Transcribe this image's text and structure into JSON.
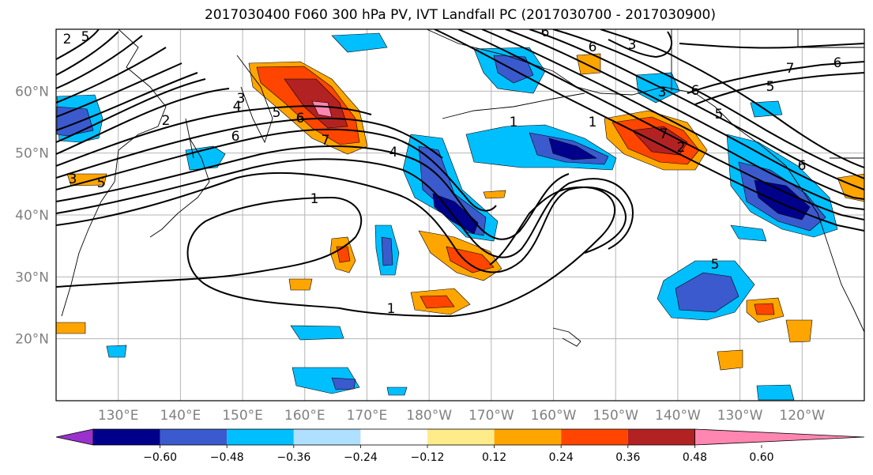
{
  "title": "2017030400 F060 300 hPa PV, IVT Landfall PC (2017030700 - 2017030900)",
  "lat_labels": [
    "20°N",
    "30°N",
    "40°N",
    "50°N",
    "60°N"
  ],
  "lon_labels": [
    "130°E",
    "140°E",
    "150°E",
    "160°E",
    "170°E",
    "180°W",
    "170°W",
    "160°W",
    "150°W",
    "140°W",
    "130°W",
    "120°W"
  ],
  "map_extent": {
    "lon_min": 120,
    "lon_max": 250,
    "lat_min": 10,
    "lat_max": 70
  },
  "contour_labels": [
    "1",
    "1",
    "1",
    "2",
    "3",
    "3",
    "4",
    "5",
    "6",
    "6",
    "7",
    "2",
    "3",
    "4",
    "5",
    "6",
    "7",
    "1",
    "5",
    "6",
    "6",
    "3",
    "2",
    "5",
    "6",
    "7",
    "5",
    "6",
    "5"
  ],
  "colorbar": {
    "colors": [
      "#9932cc",
      "#00008b",
      "#3a5acd",
      "#00bfff",
      "#b0e0ff",
      "#ffffff",
      "#ffeb8a",
      "#ffa500",
      "#ff4500",
      "#b22222",
      "#ff86b0"
    ],
    "tick_labels": [
      "−0.60",
      "−0.48",
      "−0.36",
      "−0.24",
      "−0.12",
      "0.12",
      "0.24",
      "0.36",
      "0.48",
      "0.60"
    ]
  }
}
